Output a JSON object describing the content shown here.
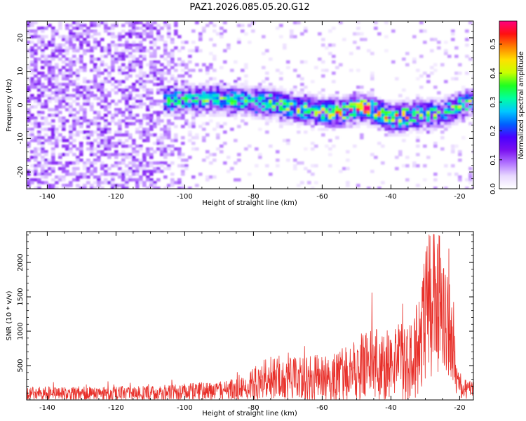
{
  "title": "PAZ1.2026.085.05.20.G12",
  "chart_data": [
    {
      "type": "heatmap",
      "xlabel": "Height of straight line (km)",
      "ylabel": "Frequency (Hz)",
      "xlim": [
        -146,
        -16
      ],
      "ylim": [
        -25,
        25
      ],
      "xticks": [
        -140,
        -120,
        -100,
        -80,
        -60,
        -40,
        -20
      ],
      "yticks": [
        -20,
        -10,
        0,
        10,
        20
      ],
      "xtick_labels": [
        "-140",
        "-120",
        "-100",
        "-80",
        "-60",
        "-40",
        "-20"
      ],
      "ytick_labels": [
        "-20",
        "-10",
        "0",
        "10",
        "20"
      ],
      "colorbar": {
        "label": "Normalized spectral amplitude",
        "range": [
          0.0,
          0.58
        ],
        "ticks": [
          0.0,
          0.1,
          0.2,
          0.3,
          0.4,
          0.5
        ],
        "tick_labels": [
          "0.0",
          "0.1",
          "0.2",
          "0.3",
          "0.4",
          "0.5"
        ],
        "colors": [
          "#ffffff",
          "#e8d8ff",
          "#b070ff",
          "#7a10f0",
          "#4a00ff",
          "#0060ff",
          "#00c8ff",
          "#00ffa0",
          "#20ff20",
          "#c8ff00",
          "#ffe000",
          "#ff8000",
          "#ff1010",
          "#ff0080"
        ]
      },
      "ridge": [
        {
          "x": -104,
          "f": 1.5
        },
        {
          "x": -95,
          "f": 1.8
        },
        {
          "x": -85,
          "f": 1.5
        },
        {
          "x": -75,
          "f": 0.5
        },
        {
          "x": -65,
          "f": -1.5
        },
        {
          "x": -55,
          "f": -2.5
        },
        {
          "x": -48,
          "f": -0.5
        },
        {
          "x": -40,
          "f": -4.0
        },
        {
          "x": -32,
          "f": -3.0
        },
        {
          "x": -25,
          "f": -2.5
        },
        {
          "x": -17,
          "f": 1.0
        }
      ],
      "peak": {
        "x": -47,
        "f": -1.0,
        "value": 0.58
      }
    },
    {
      "type": "line",
      "xlabel": "Height of straight line (km)",
      "ylabel": "SNR (10 * v/v)",
      "xlim": [
        -146,
        -16
      ],
      "ylim": [
        0,
        2450
      ],
      "xticks": [
        -140,
        -120,
        -100,
        -80,
        -60,
        -40,
        -20
      ],
      "yticks": [
        500,
        1000,
        1500,
        2000
      ],
      "xtick_labels": [
        "-140",
        "-120",
        "-100",
        "-80",
        "-60",
        "-40",
        "-20"
      ],
      "ytick_labels": [
        "500",
        "1000",
        "1500",
        "2000"
      ],
      "series": [
        {
          "name": "SNR",
          "color": "#e8302a"
        }
      ],
      "envelope": [
        {
          "x": -146,
          "mean": 95,
          "amp": 95
        },
        {
          "x": -110,
          "mean": 100,
          "amp": 105
        },
        {
          "x": -90,
          "mean": 135,
          "amp": 135
        },
        {
          "x": -82,
          "mean": 170,
          "amp": 160
        },
        {
          "x": -78,
          "mean": 300,
          "amp": 300
        },
        {
          "x": -65,
          "mean": 300,
          "amp": 320
        },
        {
          "x": -55,
          "mean": 340,
          "amp": 380
        },
        {
          "x": -47,
          "mean": 500,
          "amp": 550
        },
        {
          "x": -40,
          "mean": 520,
          "amp": 500
        },
        {
          "x": -33,
          "mean": 620,
          "amp": 650
        },
        {
          "x": -29,
          "mean": 1300,
          "amp": 1100
        },
        {
          "x": -25,
          "mean": 1500,
          "amp": 1000
        },
        {
          "x": -22,
          "mean": 700,
          "amp": 650
        },
        {
          "x": -20,
          "mean": 180,
          "amp": 160
        },
        {
          "x": -16,
          "mean": 140,
          "amp": 120
        }
      ]
    }
  ]
}
